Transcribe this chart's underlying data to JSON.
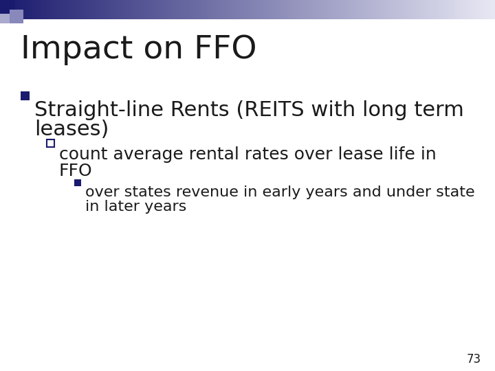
{
  "title": "Impact on FFO",
  "background_color": "#ffffff",
  "title_color": "#1a1a1a",
  "title_fontsize": 34,
  "bullet1_line1": "Straight-line Rents (REITS with long term",
  "bullet1_line2": "leases)",
  "bullet1_color": "#1a1a1a",
  "bullet1_fontsize": 22,
  "bullet2_line1": "count average rental rates over lease life in",
  "bullet2_line2": "FFO",
  "bullet2_fontsize": 18,
  "bullet2_color": "#1a1a1a",
  "bullet3_line1": "over states revenue in early years and under state",
  "bullet3_line2": "in later years",
  "bullet3_fontsize": 16,
  "bullet3_color": "#1a1a1a",
  "page_number": "73",
  "page_num_color": "#1a1a1a",
  "page_num_fontsize": 12,
  "square_bullet_color": "#1a1a6e",
  "checkbox_color": "#1a1a6e",
  "header_dark": "#1a1a6e",
  "header_light": "#e8e8f0"
}
